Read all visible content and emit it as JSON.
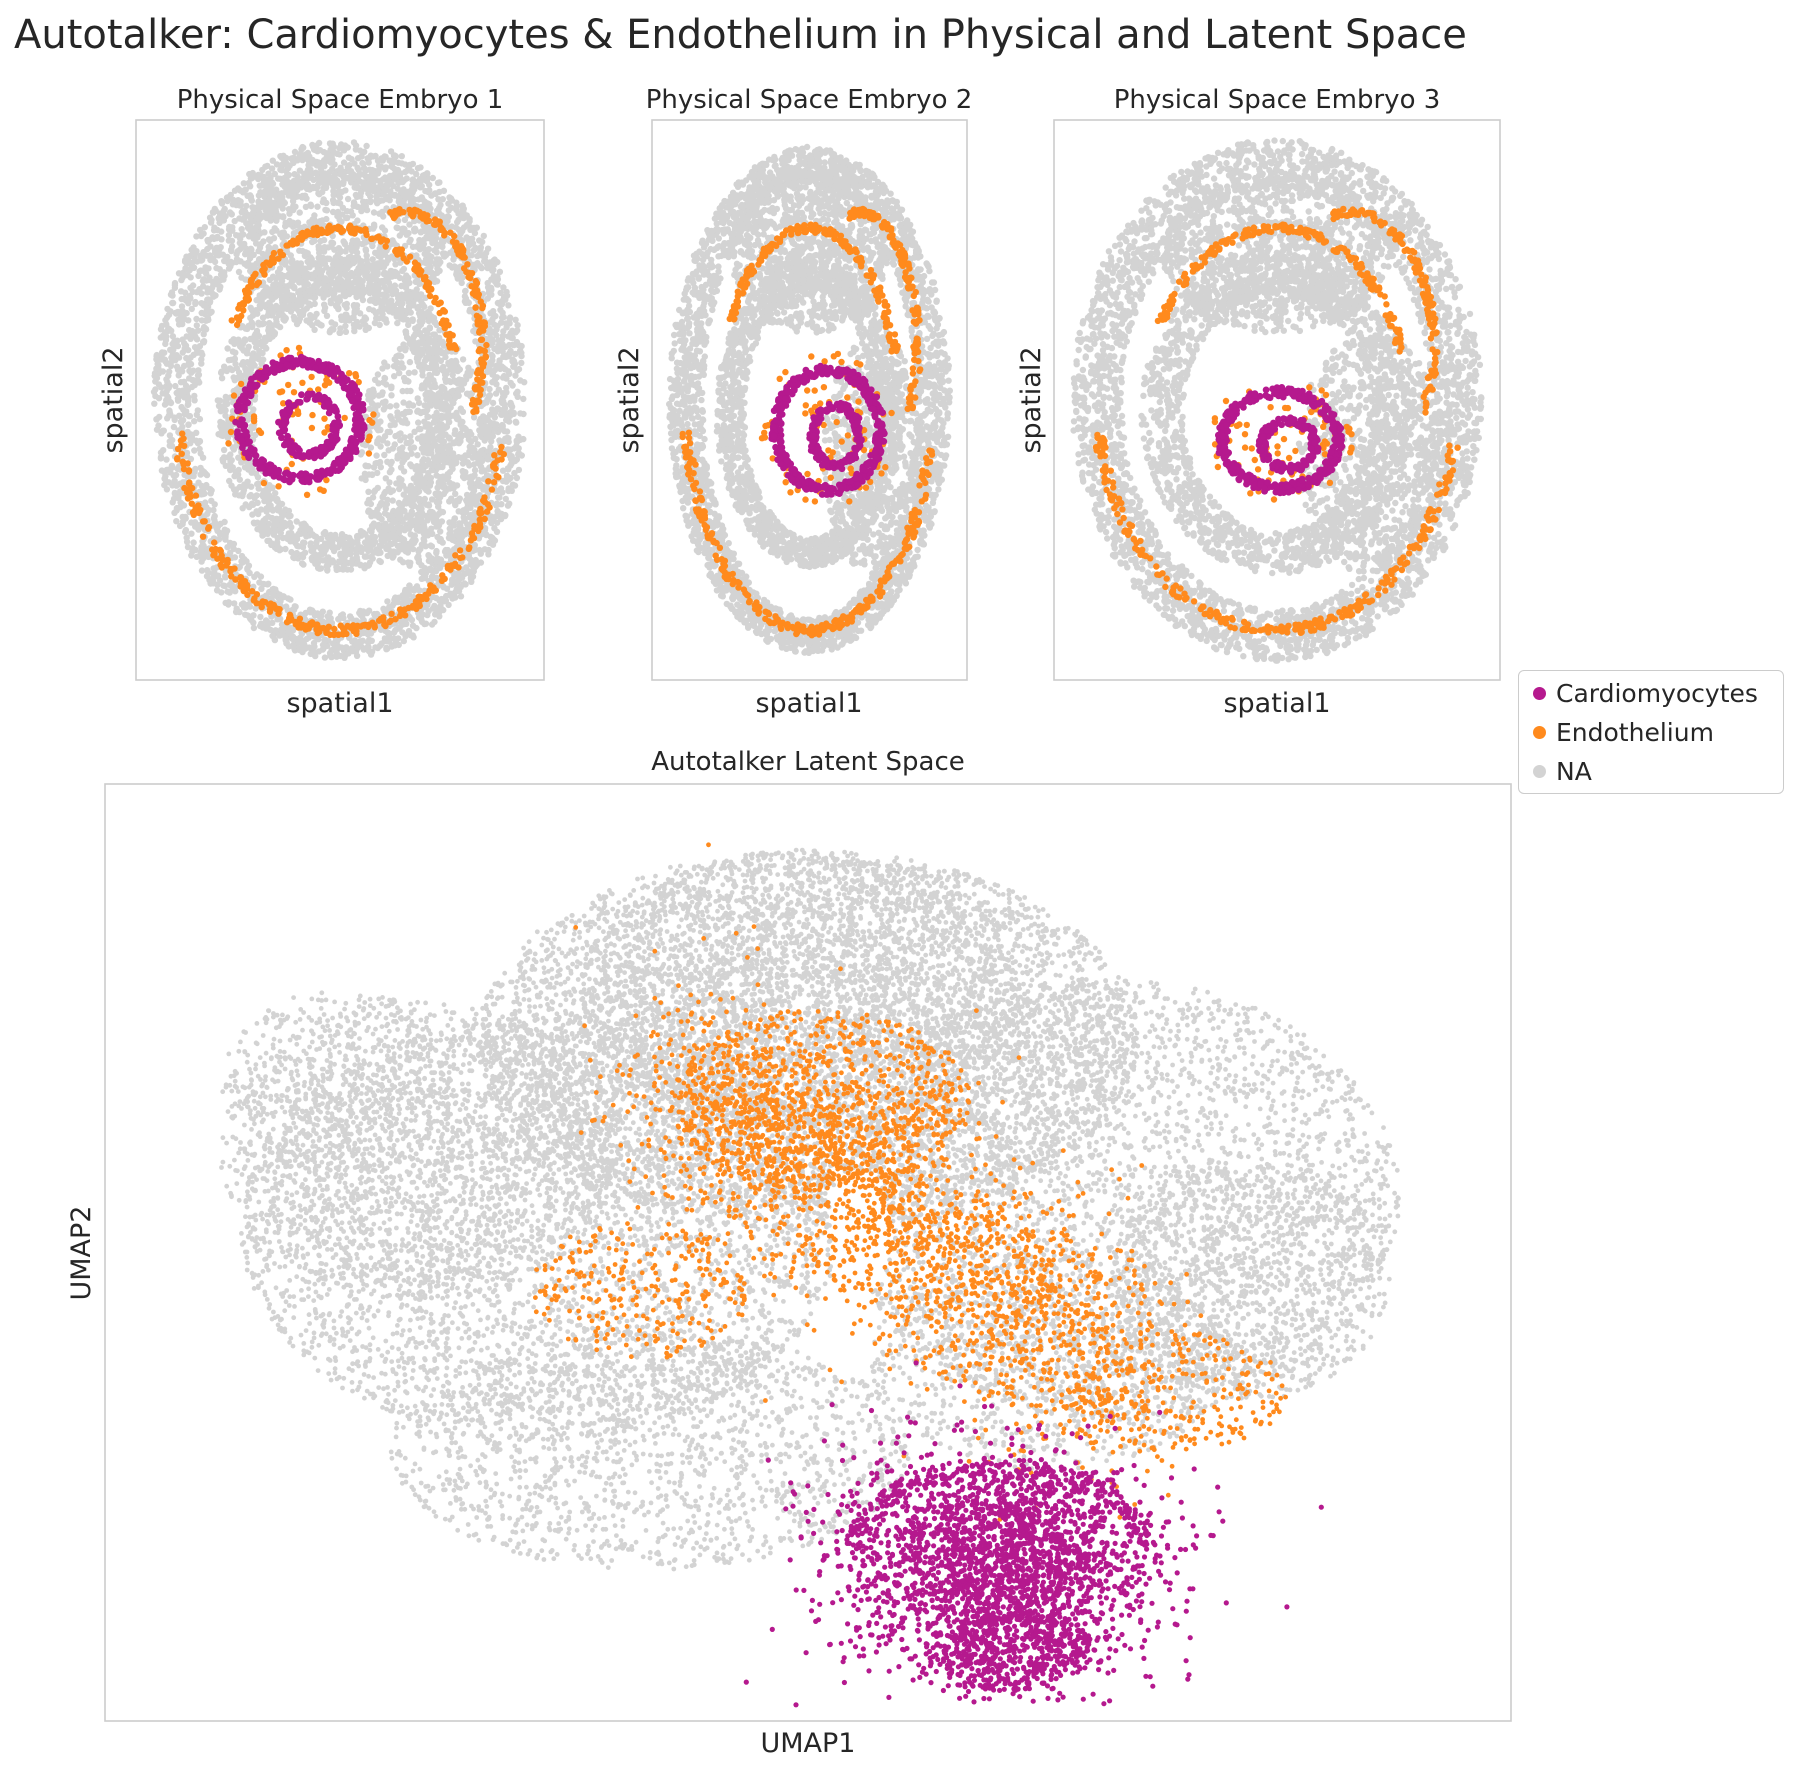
{
  "figure": {
    "title": "Autotalker: Cardiomyocytes & Endothelium in Physical and Latent Space"
  },
  "legend": {
    "placement": "right, between rows",
    "entries": [
      {
        "label": "Cardiomyocytes",
        "color": "#b5198e"
      },
      {
        "label": "Endothelium",
        "color": "#ff8a1d"
      },
      {
        "label": "NA",
        "color": "#d3d3d3"
      }
    ]
  },
  "chart_data": [
    {
      "type": "scatter",
      "title": "Physical Space Embryo 1",
      "xlabel": "spatial1",
      "ylabel": "spatial2",
      "ticks": false,
      "grid": false,
      "series": [
        {
          "name": "Cardiomyocytes",
          "color": "#b5198e"
        },
        {
          "name": "Endothelium",
          "color": "#ff8a1d"
        },
        {
          "name": "NA",
          "color": "#d3d3d3"
        }
      ]
    },
    {
      "type": "scatter",
      "title": "Physical Space Embryo 2",
      "xlabel": "spatial1",
      "ylabel": "spatial2",
      "ticks": false,
      "grid": false,
      "series": [
        {
          "name": "Cardiomyocytes",
          "color": "#b5198e"
        },
        {
          "name": "Endothelium",
          "color": "#ff8a1d"
        },
        {
          "name": "NA",
          "color": "#d3d3d3"
        }
      ]
    },
    {
      "type": "scatter",
      "title": "Physical Space Embryo 3",
      "xlabel": "spatial1",
      "ylabel": "spatial2",
      "ticks": false,
      "grid": false,
      "series": [
        {
          "name": "Cardiomyocytes",
          "color": "#b5198e"
        },
        {
          "name": "Endothelium",
          "color": "#ff8a1d"
        },
        {
          "name": "NA",
          "color": "#d3d3d3"
        }
      ]
    },
    {
      "type": "scatter",
      "title": "Autotalker Latent Space",
      "xlabel": "UMAP1",
      "ylabel": "UMAP2",
      "ticks": false,
      "grid": false,
      "series": [
        {
          "name": "Cardiomyocytes",
          "color": "#b5198e"
        },
        {
          "name": "Endothelium",
          "color": "#ff8a1d"
        },
        {
          "name": "NA",
          "color": "#d3d3d3"
        }
      ]
    }
  ]
}
